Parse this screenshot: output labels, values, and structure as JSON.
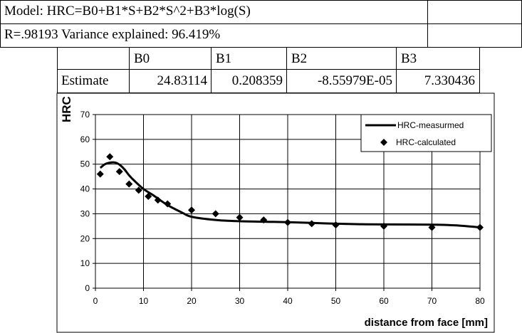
{
  "sheet": {
    "model_text": "Model: HRC=B0+B1*S+B2*S^2+B3*log(S)",
    "r_text": "R=.98193 Variance explained: 96.419%",
    "headers": [
      "",
      "B0",
      "B1",
      "B2",
      "B3"
    ],
    "estimate_label": "Estimate",
    "estimates": [
      "24.83114",
      "0.208359",
      "-8.55979E-05",
      "7.330436"
    ]
  },
  "chart_data": {
    "type": "line",
    "xlabel": "distance from face [mm]",
    "ylabel": "HRC",
    "xlim": [
      0,
      80
    ],
    "ylim": [
      0,
      70
    ],
    "xticks": [
      0,
      10,
      20,
      30,
      40,
      50,
      60,
      70,
      80
    ],
    "yticks": [
      0,
      10,
      20,
      30,
      40,
      50,
      60,
      70
    ],
    "grid": true,
    "legend_position": "top-right",
    "series": [
      {
        "name": "HRC-measurmed",
        "type": "line",
        "color": "#000000",
        "x": [
          1,
          2,
          3,
          4,
          5,
          6,
          7,
          8,
          10,
          12,
          15,
          18,
          20,
          25,
          30,
          35,
          40,
          45,
          50,
          55,
          60,
          70,
          75,
          80
        ],
        "y": [
          48.5,
          50,
          50.6,
          50.7,
          49.8,
          48,
          45.5,
          43.5,
          40,
          37.5,
          33.5,
          30.5,
          28.8,
          27.5,
          27,
          26.8,
          26.6,
          26.3,
          26,
          25.8,
          25.7,
          25.6,
          25.3,
          24.5
        ]
      },
      {
        "name": "HRC-calculated",
        "type": "scatter",
        "marker": "diamond",
        "color": "#000000",
        "x": [
          1,
          3,
          5,
          7,
          9,
          11,
          13,
          15,
          20,
          25,
          30,
          35,
          40,
          45,
          50,
          60,
          70,
          80
        ],
        "y": [
          46,
          53,
          47,
          42,
          39.5,
          37,
          35.5,
          34,
          31.5,
          30,
          28.5,
          27.5,
          26.5,
          26,
          25.5,
          25,
          24.5,
          24.5
        ]
      }
    ]
  }
}
